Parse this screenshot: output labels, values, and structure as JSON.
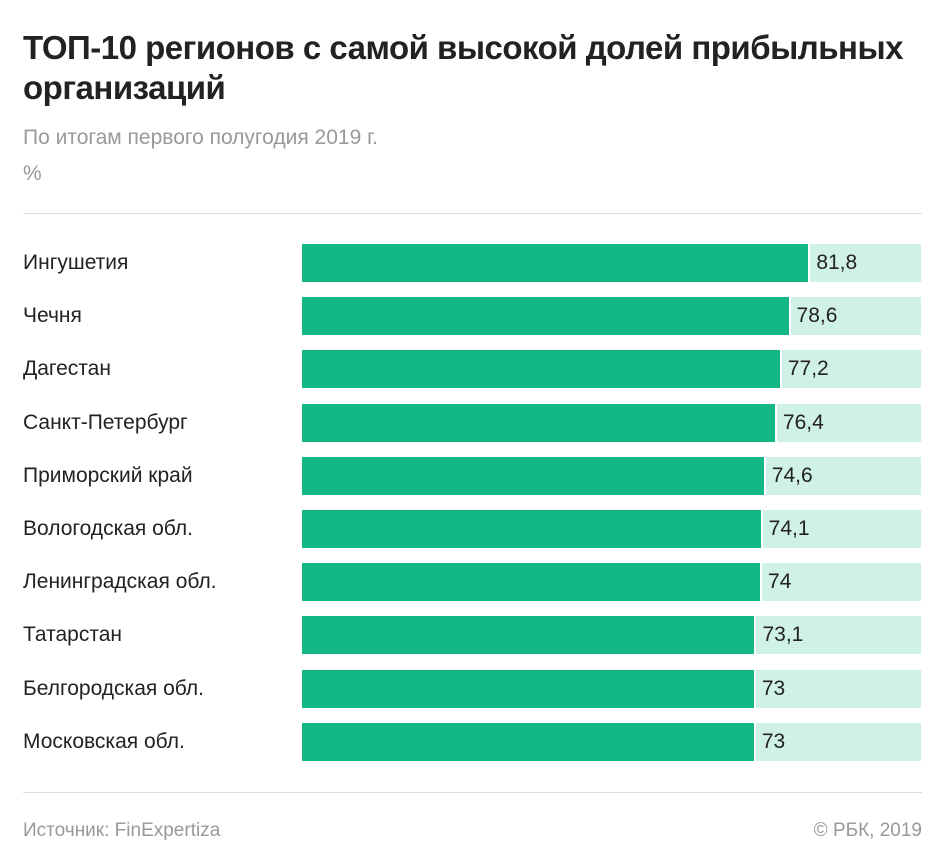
{
  "chart_data": {
    "type": "bar",
    "orientation": "horizontal",
    "title": "ТОП-10 регионов с самой высокой долей прибыльных организаций",
    "subtitle": "По итогам первого полугодия 2019 г.",
    "unit": "%",
    "categories": [
      "Ингушетия",
      "Чечня",
      "Дагестан",
      "Санкт-Петербург",
      "Приморский край",
      "Вологодская обл.",
      "Ленинградская обл.",
      "Татарстан",
      "Белгородская обл.",
      "Московская обл."
    ],
    "values": [
      81.8,
      78.6,
      77.2,
      76.4,
      74.6,
      74.1,
      74,
      73.1,
      73,
      73
    ],
    "value_labels": [
      "81,8",
      "78,6",
      "77,2",
      "76,4",
      "74,6",
      "74,1",
      "74",
      "73,1",
      "73",
      "73"
    ],
    "xlim": [
      0,
      100
    ],
    "colors": {
      "bar": "#13b886",
      "track": "#d0f1e6"
    }
  },
  "footer": {
    "source": "Источник: FinExpertiza",
    "copyright": "© РБК, 2019"
  }
}
